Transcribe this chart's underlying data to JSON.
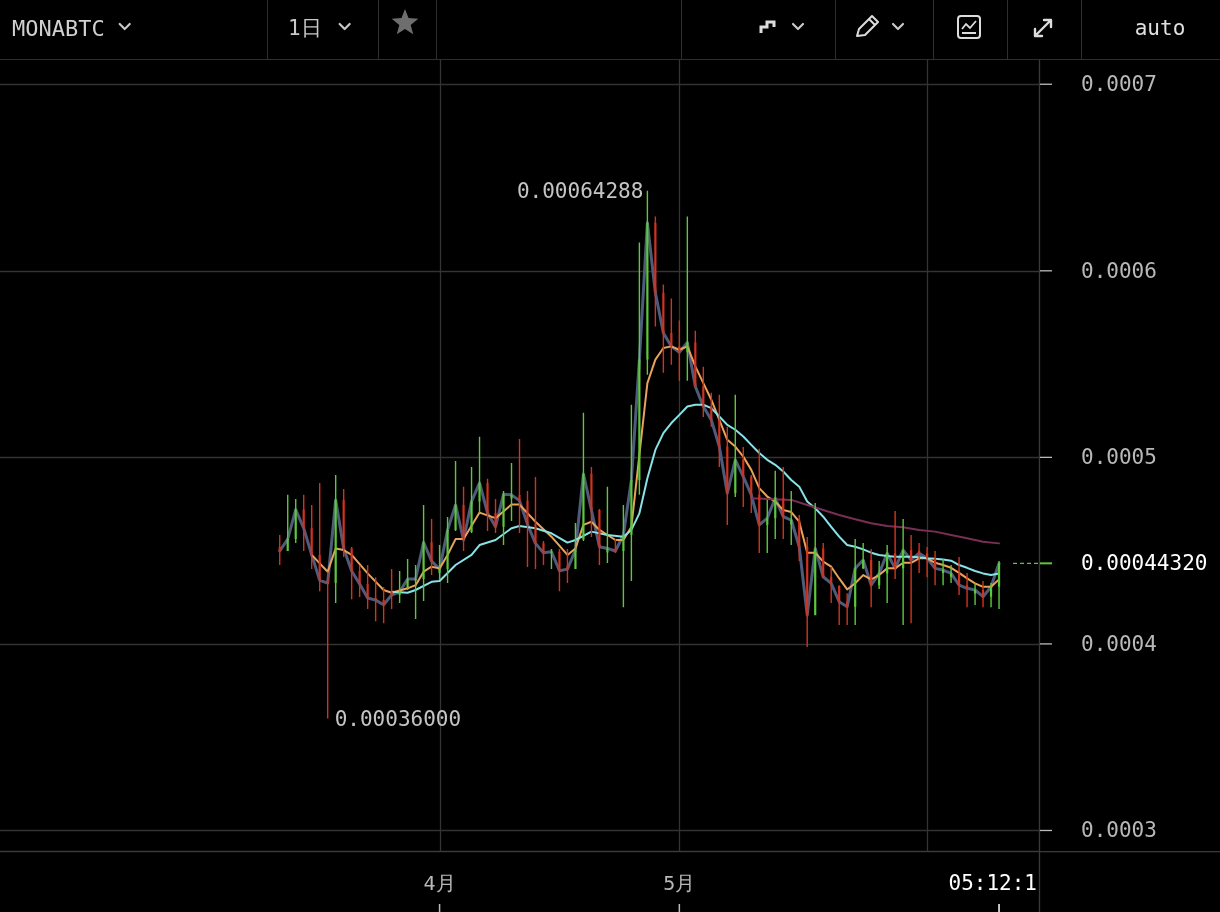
{
  "chart_data": {
    "type": "candlestick",
    "title": "MONABTC",
    "x": [
      "--03-12",
      "--03-13",
      "--03-14",
      "--03-15",
      "--03-16",
      "--03-17",
      "--03-18",
      "--03-19",
      "--03-20",
      "--03-21",
      "--03-22",
      "--03-23",
      "--03-24",
      "--03-25",
      "--03-26",
      "--03-27",
      "--03-28",
      "--03-29",
      "--03-30",
      "--03-31",
      "--04-01",
      "--04-02",
      "--04-03",
      "--04-04",
      "--04-05",
      "--04-06",
      "--04-07",
      "--04-08",
      "--04-09",
      "--04-10",
      "--04-11",
      "--04-12",
      "--04-13",
      "--04-14",
      "--04-15",
      "--04-16",
      "--04-17",
      "--04-18",
      "--04-19",
      "--04-20",
      "--04-21",
      "--04-22",
      "--04-23",
      "--04-24",
      "--04-25",
      "--04-26",
      "--04-27",
      "--04-28",
      "--04-29",
      "--04-30",
      "--05-01",
      "--05-02",
      "--05-03",
      "--05-04",
      "--05-05",
      "--05-06",
      "--05-07",
      "--05-08",
      "--05-09",
      "--05-10",
      "--05-11",
      "--05-12",
      "--05-13",
      "--05-14",
      "--05-15",
      "--05-16",
      "--05-17",
      "--05-18",
      "--05-19",
      "--05-20",
      "--05-21",
      "--05-22",
      "--05-23",
      "--05-24",
      "--05-25",
      "--05-26",
      "--05-27",
      "--05-28",
      "--05-29",
      "--05-30",
      "--05-31",
      "--06-01",
      "--06-02",
      "--06-03",
      "--06-04",
      "--06-05",
      "--06-06",
      "--06-07",
      "--06-08",
      "--06-09",
      "--06-10"
    ],
    "ohlc": [
      [
        0.000452,
        0.0004584,
        0.0004423,
        0.0004498
      ],
      [
        0.0004498,
        0.0004799,
        0.0004498,
        0.0004562
      ],
      [
        0.0004562,
        0.0004777,
        0.0004541,
        0.000472
      ],
      [
        0.000472,
        0.0004799,
        0.0004498,
        0.000462
      ],
      [
        0.000462,
        0.0004745,
        0.0004401,
        0.0004477
      ],
      [
        0.0004477,
        0.0004863,
        0.0004283,
        0.0004341
      ],
      [
        0.0004341,
        0.0004387,
        0.00036,
        0.0004326
      ],
      [
        0.0004326,
        0.0004906,
        0.0004219,
        0.0004772
      ],
      [
        0.0004772,
        0.0004831,
        0.0004466,
        0.0004512
      ],
      [
        0.0004512,
        0.0004519,
        0.000424,
        0.0004391
      ],
      [
        0.0004391,
        0.0004423,
        0.0004251,
        0.0004321
      ],
      [
        0.0004321,
        0.0004423,
        0.0004187,
        0.0004246
      ],
      [
        0.0004246,
        0.0004358,
        0.0004122,
        0.0004235
      ],
      [
        0.0004235,
        0.0004305,
        0.0004111,
        0.000421
      ],
      [
        0.000428,
        0.0004401,
        0.0004187,
        0.0004262
      ],
      [
        0.0004262,
        0.0004391,
        0.0004219,
        0.0004279
      ],
      [
        0.00043,
        0.0004455,
        0.0004289,
        0.0004348
      ],
      [
        0.000434,
        0.0004423,
        0.0004133,
        0.0004348
      ],
      [
        0.0004348,
        0.0004745,
        0.000423,
        0.0004545
      ],
      [
        0.0004545,
        0.000467,
        0.0004369,
        0.0004444
      ],
      [
        0.000438,
        0.000453,
        0.0004342,
        0.0004401
      ],
      [
        0.0004401,
        0.0004681,
        0.0004326,
        0.0004611
      ],
      [
        0.0004611,
        0.0004981,
        0.0004605,
        0.0004745
      ],
      [
        0.0004745,
        0.0004842,
        0.0004498,
        0.0004557
      ],
      [
        0.00046,
        0.0004949,
        0.0004595,
        0.0004763
      ],
      [
        0.0004763,
        0.000511,
        0.0004702,
        0.0004863
      ],
      [
        0.0004863,
        0.0004885,
        0.0004605,
        0.0004702
      ],
      [
        0.0004702,
        0.0004777,
        0.0004595,
        0.0004628
      ],
      [
        0.0004628,
        0.000482,
        0.000453,
        0.0004802
      ],
      [
        0.000478,
        0.000497,
        0.0004659,
        0.0004799
      ],
      [
        0.0004799,
        0.0005099,
        0.0004595,
        0.0004768
      ],
      [
        0.0004768,
        0.000482,
        0.0004412,
        0.0004641
      ],
      [
        0.0004641,
        0.0004895,
        0.0004401,
        0.0004539
      ],
      [
        0.0004539,
        0.0004552,
        0.0004423,
        0.0004489
      ],
      [
        0.0004489,
        0.0004509,
        0.0004401,
        0.0004494
      ],
      [
        0.0004494,
        0.0004509,
        0.0004283,
        0.0004392
      ],
      [
        0.000442,
        0.0004509,
        0.0004326,
        0.0004401
      ],
      [
        0.0004401,
        0.0004648,
        0.0004401,
        0.0004503
      ],
      [
        0.000456,
        0.0005239,
        0.0004552,
        0.0004911
      ],
      [
        0.0004911,
        0.0004949,
        0.0004573,
        0.0004718
      ],
      [
        0.0004718,
        0.0004723,
        0.0004423,
        0.0004521
      ],
      [
        0.000449,
        0.0004842,
        0.0004434,
        0.0004512
      ],
      [
        0.0004512,
        0.0004562,
        0.0004487,
        0.0004498
      ],
      [
        0.0004498,
        0.0004745,
        0.0004197,
        0.0004584
      ],
      [
        0.0004584,
        0.0005282,
        0.0004337,
        0.0004879
      ],
      [
        0.0004879,
        0.0006152,
        0.0004799,
        0.0005524
      ],
      [
        0.0005524,
        0.00064288,
        0.0005443,
        0.0006257
      ],
      [
        0.0006257,
        0.0006291,
        0.0005701,
        0.0005882
      ],
      [
        0.0005882,
        0.0005926,
        0.0005454,
        0.0005667
      ],
      [
        0.0005667,
        0.0005851,
        0.0005497,
        0.0005595
      ],
      [
        0.0005595,
        0.0005733,
        0.0005411,
        0.0005563
      ],
      [
        0.0005563,
        0.0006291,
        0.0005411,
        0.0005616
      ],
      [
        0.0005616,
        0.0005679,
        0.0005379,
        0.000538
      ],
      [
        0.000538,
        0.0005486,
        0.0005217,
        0.0005273
      ],
      [
        0.0005273,
        0.0005346,
        0.0005164,
        0.0005201
      ],
      [
        0.0005201,
        0.0005336,
        0.0004949,
        0.0005058
      ],
      [
        0.0005058,
        0.0005164,
        0.0004638,
        0.0004808
      ],
      [
        0.0004808,
        0.0005336,
        0.0004788,
        0.0004987
      ],
      [
        0.0004987,
        0.0005056,
        0.0004734,
        0.0004897
      ],
      [
        0.0004897,
        0.0004906,
        0.0004702,
        0.0004799
      ],
      [
        0.0004799,
        0.0005046,
        0.0004487,
        0.0004638
      ],
      [
        0.0004638,
        0.0004772,
        0.0004487,
        0.0004674
      ],
      [
        0.0004674,
        0.0004928,
        0.0004562,
        0.0004781
      ],
      [
        0.0004781,
        0.0004949,
        0.0004562,
        0.0004682
      ],
      [
        0.000464,
        0.000482,
        0.000453,
        0.0004664
      ],
      [
        0.0004664,
        0.0004691,
        0.0004444,
        0.0004521
      ],
      [
        0.0004521,
        0.0004573,
        0.0003983,
        0.0004154
      ],
      [
        0.0004154,
        0.0004756,
        0.0004154,
        0.0004512
      ],
      [
        0.0004512,
        0.0004541,
        0.0004353,
        0.000436
      ],
      [
        0.000436,
        0.0004412,
        0.0004219,
        0.0004325
      ],
      [
        0.000431,
        0.0004315,
        0.0004101,
        0.0004226
      ],
      [
        0.0004226,
        0.0004272,
        0.0004101,
        0.0004199
      ],
      [
        0.0004199,
        0.0004562,
        0.0004101,
        0.0004405
      ],
      [
        0.0004405,
        0.0004541,
        0.0004401,
        0.000445
      ],
      [
        0.000445,
        0.0004509,
        0.0004197,
        0.0004315
      ],
      [
        0.0004315,
        0.0004444,
        0.0004294,
        0.0004378
      ],
      [
        0.0004378,
        0.000453,
        0.0004219,
        0.0004486
      ],
      [
        0.0004486,
        0.0004713,
        0.0004348,
        0.0004405
      ],
      [
        0.0004405,
        0.000467,
        0.0004101,
        0.0004503
      ],
      [
        0.0004503,
        0.0004584,
        0.0004111,
        0.000445
      ],
      [
        0.00045,
        0.0004541,
        0.000438,
        0.0004486
      ],
      [
        0.0004486,
        0.0004519,
        0.0004358,
        0.0004459
      ],
      [
        0.0004459,
        0.0004498,
        0.0004315,
        0.0004405
      ],
      [
        0.000438,
        0.0004455,
        0.0004315,
        0.0004396
      ],
      [
        0.000436,
        0.0004423,
        0.0004326,
        0.0004378
      ],
      [
        0.0004378,
        0.0004466,
        0.0004262,
        0.0004315
      ],
      [
        0.0004315,
        0.000438,
        0.0004197,
        0.0004298
      ],
      [
        0.000427,
        0.0004326,
        0.0004208,
        0.0004289
      ],
      [
        0.0004289,
        0.0004337,
        0.0004197,
        0.0004253
      ],
      [
        0.0004253,
        0.0004326,
        0.0004197,
        0.0004306
      ],
      [
        0.0004306,
        0.0004444,
        0.0004187,
        0.0004432
      ]
    ],
    "colors": [
      "#d2321e",
      "#5cc83a",
      "#5cc83a",
      "#d2321e",
      "#d2321e",
      "#d2321e",
      "#d2321e",
      "#5cc83a",
      "#d2321e",
      "#d2321e",
      "#d2321e",
      "#d2321e",
      "#d2321e",
      "#d2321e",
      "#d2321e",
      "#5cc83a",
      "#5cc83a",
      "#5cc83a",
      "#5cc83a",
      "#d2321e",
      "#5cc83a",
      "#5cc83a",
      "#5cc83a",
      "#d2321e",
      "#5cc83a",
      "#5cc83a",
      "#d2321e",
      "#d2321e",
      "#5cc83a",
      "#5cc83a",
      "#d2321e",
      "#d2321e",
      "#d2321e",
      "#d2321e",
      "#5cc83a",
      "#d2321e",
      "#d2321e",
      "#5cc83a",
      "#5cc83a",
      "#d2321e",
      "#d2321e",
      "#5cc83a",
      "#d2321e",
      "#5cc83a",
      "#5cc83a",
      "#5cc83a",
      "#5cc83a",
      "#d2321e",
      "#d2321e",
      "#d2321e",
      "#d2321e",
      "#5cc83a",
      "#d2321e",
      "#d2321e",
      "#d2321e",
      "#d2321e",
      "#d2321e",
      "#5cc83a",
      "#d2321e",
      "#d2321e",
      "#d2321e",
      "#5cc83a",
      "#5cc83a",
      "#d2321e",
      "#5cc83a",
      "#d2321e",
      "#d2321e",
      "#5cc83a",
      "#d2321e",
      "#d2321e",
      "#d2321e",
      "#d2321e",
      "#5cc83a",
      "#5cc83a",
      "#d2321e",
      "#5cc83a",
      "#5cc83a",
      "#d2321e",
      "#5cc83a",
      "#d2321e",
      "#d2321e",
      "#d2321e",
      "#d2321e",
      "#5cc83a",
      "#5cc83a",
      "#d2321e",
      "#d2321e",
      "#5cc83a",
      "#d2321e",
      "#5cc83a",
      "#5cc83a"
    ],
    "series": [
      {
        "type": "line",
        "color": "#4d5b7c",
        "values": [
          0.0004498,
          0.0004562,
          0.000472,
          0.000462,
          0.0004477,
          0.0004341,
          0.0004326,
          0.0004772,
          0.0004512,
          0.0004391,
          0.0004321,
          0.0004246,
          0.0004235,
          0.000421,
          0.0004262,
          0.0004279,
          0.0004348,
          0.0004348,
          0.0004545,
          0.0004444,
          0.0004401,
          0.0004611,
          0.0004745,
          0.0004557,
          0.0004763,
          0.0004863,
          0.0004702,
          0.0004628,
          0.0004802,
          0.0004799,
          0.0004768,
          0.0004641,
          0.0004539,
          0.0004489,
          0.0004494,
          0.0004392,
          0.0004401,
          0.0004503,
          0.0004911,
          0.0004718,
          0.0004521,
          0.0004512,
          0.0004498,
          0.0004584,
          0.0004879,
          0.0005524,
          0.0006257,
          0.0005882,
          0.0005667,
          0.0005595,
          0.0005563,
          0.0005616,
          0.000538,
          0.0005273,
          0.0005201,
          0.0005058,
          0.0004808,
          0.0004987,
          0.0004897,
          0.0004799,
          0.0004638,
          0.0004674,
          0.0004781,
          0.0004682,
          0.0004664,
          0.0004521,
          0.0004154,
          0.0004512,
          0.000436,
          0.0004325,
          0.0004226,
          0.0004199,
          0.0004405,
          0.000445,
          0.0004315,
          0.0004378,
          0.0004486,
          0.0004405,
          0.0004503,
          0.000445,
          0.0004486,
          0.0004459,
          0.0004405,
          0.0004396,
          0.0004378,
          0.0004315,
          0.0004298,
          0.0004289,
          0.0004253,
          0.0004306,
          0.0004432
        ]
      },
      {
        "type": "line",
        "color": "#e8a25c",
        "x": [
          "--03-16",
          "--03-18",
          "--03-19",
          "--03-20",
          "--03-21",
          "--03-23",
          "--03-25",
          "--03-26",
          "--03-28",
          "--03-29",
          "--03-30",
          "--03-31",
          "--04-01",
          "--04-02",
          "--04-03",
          "--04-04",
          "--04-06",
          "--04-08",
          "--04-10",
          "--04-11",
          "--04-13",
          "--04-15",
          "--04-17",
          "--04-18",
          "--04-19",
          "--04-20",
          "--04-21",
          "--04-23",
          "--04-24",
          "--04-25",
          "--04-27",
          "--04-28",
          "--04-29",
          "--04-30",
          "--05-01",
          "--05-02",
          "--05-03",
          "--05-04",
          "--05-05",
          "--05-06",
          "--05-07",
          "--05-08",
          "--05-09",
          "--05-10",
          "--05-11",
          "--05-12",
          "--05-13",
          "--05-14",
          "--05-15",
          "--05-16",
          "--05-17",
          "--05-18",
          "--05-19",
          "--05-20",
          "--05-21",
          "--05-22",
          "--05-23",
          "--05-24",
          "--05-25",
          "--05-26",
          "--05-27",
          "--05-28",
          "--05-29",
          "--05-30",
          "--05-31",
          "--06-01",
          "--06-02",
          "--06-03",
          "--06-04",
          "--06-05",
          "--06-06",
          "--06-07",
          "--06-08",
          "--06-09",
          "--06-10"
        ],
        "values": [
          0.0004477,
          0.0004387,
          0.0004512,
          0.0004503,
          0.0004477,
          0.0004378,
          0.0004289,
          0.0004274,
          0.0004298,
          0.0004315,
          0.0004387,
          0.0004414,
          0.0004405,
          0.0004477,
          0.0004562,
          0.0004562,
          0.0004704,
          0.0004674,
          0.0004747,
          0.0004747,
          0.0004655,
          0.0004575,
          0.0004477,
          0.0004512,
          0.0004638,
          0.0004655,
          0.0004611,
          0.0004557,
          0.0004557,
          0.0004628,
          0.0005398,
          0.0005524,
          0.0005586,
          0.0005595,
          0.0005577,
          0.0005595,
          0.0005488,
          0.0005398,
          0.0005309,
          0.0005201,
          0.0005094,
          0.0005058,
          0.0005004,
          0.0004933,
          0.0004835,
          0.000479,
          0.0004763,
          0.0004718,
          0.0004707,
          0.0004655,
          0.0004489,
          0.0004489,
          0.0004441,
          0.0004414,
          0.0004351,
          0.0004292,
          0.0004325,
          0.0004369,
          0.0004346,
          0.0004369,
          0.0004405,
          0.0004405,
          0.0004435,
          0.0004435,
          0.0004459,
          0.0004459,
          0.0004435,
          0.0004423,
          0.0004408,
          0.0004381,
          0.0004351,
          0.0004325,
          0.0004306,
          0.0004306,
          0.0004346
        ]
      },
      {
        "type": "line",
        "color": "#86e3e8",
        "x": [
          "--03-26",
          "--03-28",
          "--03-29",
          "--03-31",
          "--04-01",
          "--04-03",
          "--04-05",
          "--04-06",
          "--04-08",
          "--04-10",
          "--04-11",
          "--04-13",
          "--04-15",
          "--04-17",
          "--04-18",
          "--04-20",
          "--04-22",
          "--04-24",
          "--04-25",
          "--04-26",
          "--04-27",
          "--04-28",
          "--04-29",
          "--04-30",
          "--05-01",
          "--05-02",
          "--05-03",
          "--05-04",
          "--05-05",
          "--05-06",
          "--05-07",
          "--05-08",
          "--05-09",
          "--05-10",
          "--05-11",
          "--05-12",
          "--05-13",
          "--05-14",
          "--05-15",
          "--05-16",
          "--05-17",
          "--05-18",
          "--05-19",
          "--05-20",
          "--05-21",
          "--05-22",
          "--05-23",
          "--05-24",
          "--05-25",
          "--05-26",
          "--05-27",
          "--05-28",
          "--05-30",
          "--05-31",
          "--06-01",
          "--06-02",
          "--06-03",
          "--06-04",
          "--06-05",
          "--06-06",
          "--06-07",
          "--06-08",
          "--06-09",
          "--06-10"
        ],
        "values": [
          0.0004279,
          0.0004274,
          0.0004289,
          0.0004333,
          0.0004337,
          0.0004423,
          0.0004477,
          0.000453,
          0.0004557,
          0.000462,
          0.0004632,
          0.000462,
          0.0004593,
          0.0004543,
          0.0004557,
          0.0004602,
          0.0004584,
          0.0004575,
          0.0004611,
          0.00047,
          0.0004888,
          0.000504,
          0.000513,
          0.0005184,
          0.0005228,
          0.0005273,
          0.0005282,
          0.0005282,
          0.0005264,
          0.0005219,
          0.0005174,
          0.0005148,
          0.0005112,
          0.0005067,
          0.0005023,
          0.0004987,
          0.000496,
          0.0004924,
          0.0004879,
          0.0004843,
          0.0004763,
          0.0004727,
          0.0004682,
          0.0004628,
          0.0004575,
          0.000453,
          0.0004521,
          0.0004507,
          0.0004489,
          0.0004477,
          0.0004471,
          0.0004467,
          0.0004467,
          0.0004464,
          0.0004459,
          0.0004457,
          0.0004453,
          0.0004446,
          0.0004423,
          0.0004408,
          0.0004391,
          0.0004378,
          0.0004369,
          0.0004378
        ]
      },
      {
        "type": "line",
        "color": "#7a2e55",
        "x": [
          "--05-10",
          "--05-12",
          "--05-15",
          "--05-17",
          "--05-19",
          "--05-21",
          "--05-23",
          "--05-25",
          "--05-27",
          "--05-29",
          "--05-31",
          "--06-02",
          "--06-04",
          "--06-06",
          "--06-08",
          "--06-10"
        ],
        "values": [
          0.0004781,
          0.0004777,
          0.0004772,
          0.0004745,
          0.0004718,
          0.0004691,
          0.0004668,
          0.0004647,
          0.0004632,
          0.0004625,
          0.0004611,
          0.0004602,
          0.0004584,
          0.0004566,
          0.0004548,
          0.0004539
        ]
      }
    ],
    "xlim": [
      "--02-05",
      "--06-15"
    ],
    "xticks": [
      {
        "value": "--04-01",
        "label": "4月"
      },
      {
        "value": "--05-01",
        "label": "5月"
      },
      {
        "value": "--06-01",
        "label": null
      }
    ],
    "ylim": [
      0.000289,
      0.000713
    ],
    "yticks": [
      0.0003,
      0.0004,
      0.0005,
      0.0006,
      0.0007
    ],
    "grid": true,
    "annotations": [
      "1日",
      "auto",
      "0.00044320",
      {
        "text": "0.00064288",
        "x": "--04-27",
        "y": 0.00064288
      },
      {
        "text": "0.00036000",
        "x": "--03-18",
        "y": 0.00036
      },
      {
        "text": "05:12:1",
        "x": "--06-10"
      }
    ]
  }
}
